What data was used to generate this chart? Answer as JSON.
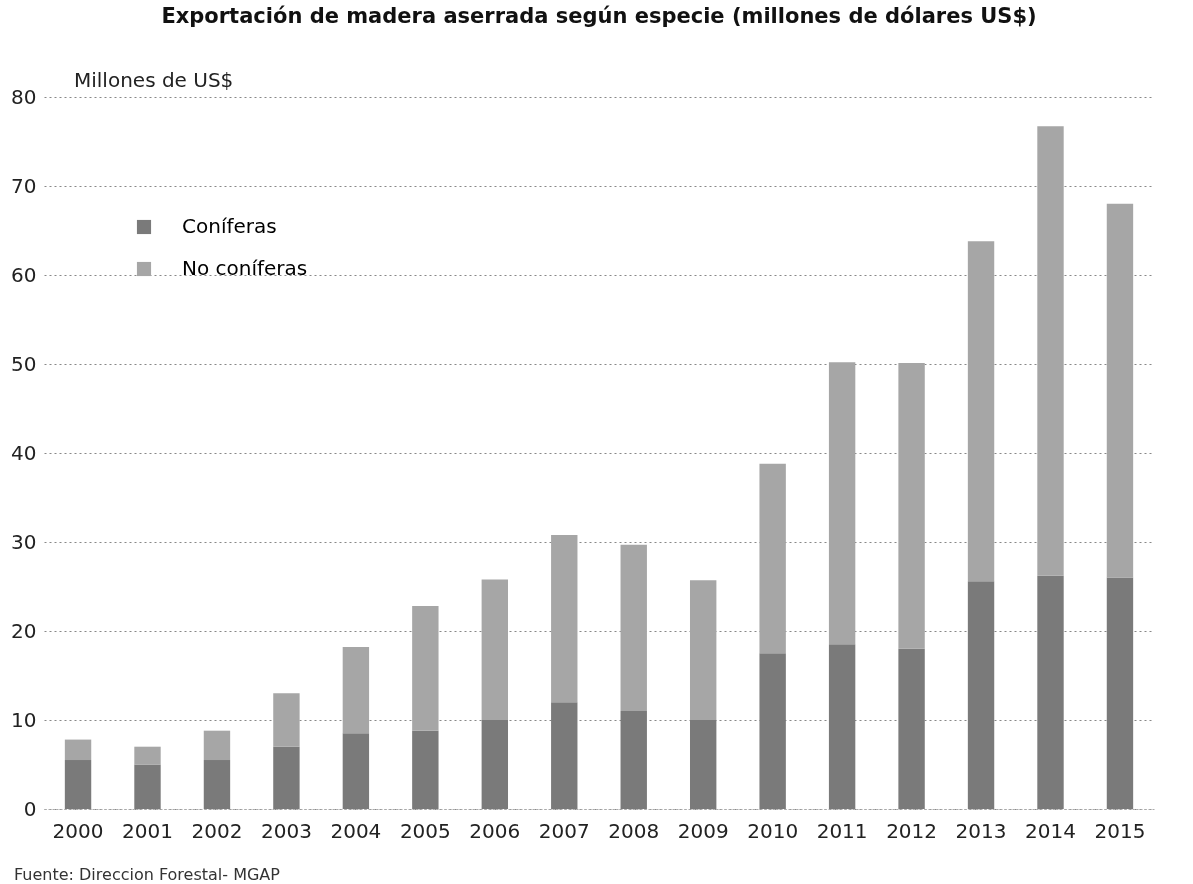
{
  "chart_data": {
    "type": "bar",
    "title": "Exportación de madera aserrada según especie (millones de dólares US$)",
    "ylabel": "Millones de US$",
    "categories": [
      "2000",
      "2001",
      "2002",
      "2003",
      "2004",
      "2005",
      "2006",
      "2007",
      "2008",
      "2009",
      "2010",
      "2011",
      "2012",
      "2013",
      "2014",
      "2015"
    ],
    "stacked": true,
    "series": [
      {
        "name": "Coníferas",
        "color": "#7a7a7a",
        "values": [
          5.5,
          5,
          5.5,
          7,
          8.5,
          8.8,
          10,
          12,
          11,
          10,
          17.5,
          18.5,
          18,
          25.6,
          26.2,
          26
        ]
      },
      {
        "name": "No coníferas",
        "color": "#a6a6a6",
        "values": [
          2.3,
          2,
          3.3,
          6,
          9.7,
          14,
          15.8,
          18.8,
          18.7,
          15.7,
          21.3,
          31.7,
          32.1,
          38.2,
          50.5,
          42
        ]
      }
    ],
    "ylim": [
      0,
      80
    ],
    "yticks": [
      0,
      10,
      20,
      30,
      40,
      50,
      60,
      70,
      80
    ],
    "grid": "y",
    "legend": "top left",
    "annotations": [
      "Fuente: Direccion Forestal- MGAP"
    ]
  }
}
